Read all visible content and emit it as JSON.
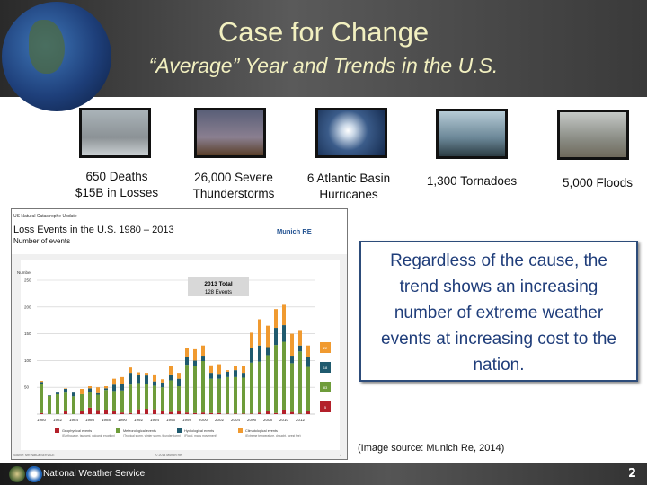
{
  "header": {
    "title": "Case for Change",
    "subtitle": "“Average” Year and Trends in the U.S."
  },
  "stats": [
    {
      "line1": "650 Deaths",
      "line2": "$15B in Losses",
      "icon": "flood-street-photo"
    },
    {
      "line1": "26,000 Severe",
      "line2": "Thunderstorms",
      "icon": "lightning-photo"
    },
    {
      "line1": "6 Atlantic Basin",
      "line2": "Hurricanes",
      "icon": "hurricane-satellite-photo"
    },
    {
      "line1": "1,300 Tornadoes",
      "line2": "",
      "icon": "tornado-photo"
    },
    {
      "line1": "5,000 Floods",
      "line2": "",
      "icon": "flood-car-photo"
    }
  ],
  "callout": "Regardless of the cause, the trend shows an increasing number of extreme weather events at increasing cost to the nation.",
  "image_source": "(Image source: Munich Re, 2014)",
  "footer": {
    "org": "National Weather Service",
    "page": "2"
  },
  "chart_data": {
    "type": "bar",
    "stacked": true,
    "kicker": "US Natural Catastrophe Update",
    "title": "Loss Events in the U.S. 1980 – 2013",
    "subtitle": "Number of events",
    "brand": "Munich RE",
    "ylabel": "Number",
    "ylim": [
      0,
      250
    ],
    "yticks": [
      50,
      100,
      150,
      200,
      250
    ],
    "xticks": [
      "1980",
      "1982",
      "1984",
      "1986",
      "1988",
      "1990",
      "1992",
      "1994",
      "1996",
      "1998",
      "2000",
      "2002",
      "2004",
      "2006",
      "2008",
      "2010",
      "2012"
    ],
    "annotation": {
      "line1": "2013 Total",
      "line2": "128 Events"
    },
    "categories": [
      1980,
      1981,
      1982,
      1983,
      1984,
      1985,
      1986,
      1987,
      1988,
      1989,
      1990,
      1991,
      1992,
      1993,
      1994,
      1995,
      1996,
      1997,
      1998,
      1999,
      2000,
      2001,
      2002,
      2003,
      2004,
      2005,
      2006,
      2007,
      2008,
      2009,
      2010,
      2011,
      2012,
      2013
    ],
    "series": [
      {
        "name": "Geophysical events",
        "desc": "(Earthquake, tsunami, volcanic eruption)",
        "color": "#b3202a",
        "values": [
          2,
          0,
          0,
          5,
          0,
          5,
          12,
          6,
          7,
          5,
          3,
          2,
          9,
          10,
          9,
          5,
          4,
          5,
          3,
          2,
          3,
          2,
          2,
          1,
          1,
          1,
          1,
          3,
          5,
          2,
          8,
          4,
          1,
          5
        ]
      },
      {
        "name": "Meteorological events",
        "desc": "(Tropical storm, winter storm, thunderstorm)",
        "color": "#6e9c3a",
        "values": [
          55,
          34,
          37,
          35,
          33,
          32,
          29,
          30,
          38,
          38,
          41,
          53,
          49,
          46,
          44,
          45,
          59,
          47,
          89,
          88,
          96,
          64,
          64,
          68,
          68,
          67,
          95,
          95,
          105,
          127,
          127,
          91,
          116,
          83
        ]
      },
      {
        "name": "Hydrological events",
        "desc": "(Flood, mass movement)",
        "color": "#1f5a6e",
        "values": [
          3,
          1,
          3,
          7,
          7,
          0,
          7,
          3,
          3,
          12,
          13,
          22,
          16,
          16,
          8,
          9,
          11,
          14,
          15,
          10,
          10,
          11,
          9,
          10,
          13,
          9,
          28,
          30,
          15,
          32,
          31,
          14,
          11,
          18
        ]
      },
      {
        "name": "Climatological events",
        "desc": "(Extreme temperature, drought, forest fire)",
        "color": "#f09a30",
        "values": [
          2,
          0,
          0,
          1,
          0,
          10,
          4,
          11,
          4,
          11,
          12,
          10,
          4,
          5,
          13,
          6,
          16,
          11,
          17,
          21,
          19,
          14,
          18,
          3,
          8,
          13,
          28,
          49,
          40,
          35,
          38,
          41,
          29,
          22
        ]
      }
    ],
    "side_labels": [
      "22",
      "18",
      "83",
      "5"
    ],
    "footer_left": "Source: MR NatCatSERVICE",
    "footer_center": "© 2014 Munich Re",
    "footer_page": "7",
    "grid": true,
    "legend": "bottom"
  }
}
